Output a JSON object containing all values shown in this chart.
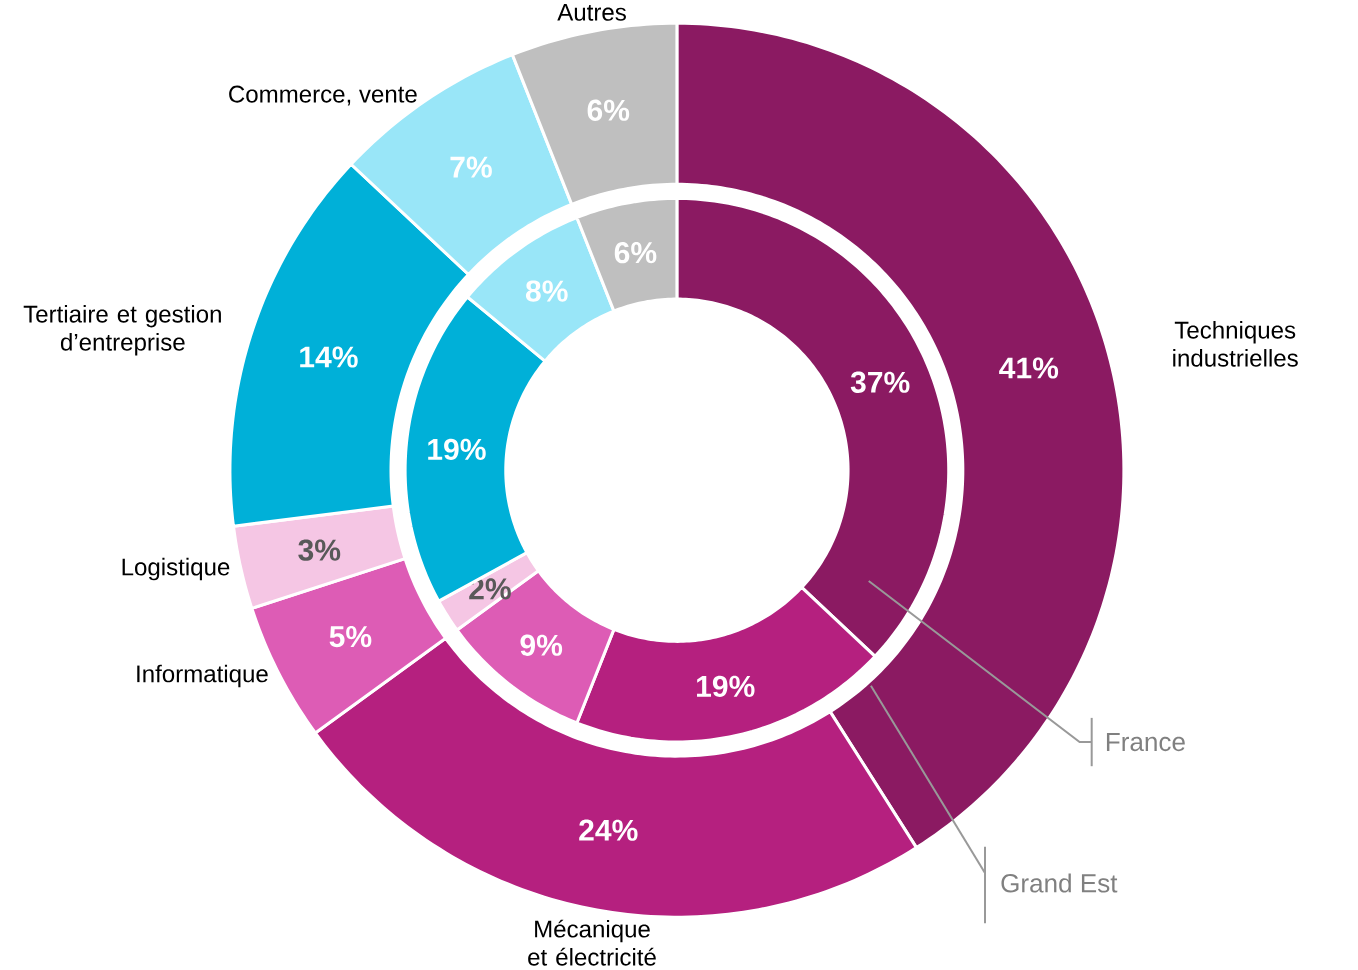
{
  "chart_data": {
    "type": "donut",
    "categories": [
      "Techniques industrielles",
      "Mécanique et électricité",
      "Informatique",
      "Logistique",
      "Tertiaire et gestion d’entreprise",
      "Commerce, vente",
      "Autres"
    ],
    "colors": [
      "#8b1a62",
      "#b5207f",
      "#dd5cb5",
      "#f5c6e4",
      "#00b0d8",
      "#99e6f8",
      "#bfbfbf"
    ],
    "series": [
      {
        "name": "Grand Est",
        "values": [
          41,
          24,
          5,
          3,
          14,
          7,
          6
        ],
        "value_labels": [
          "41%",
          "24%",
          "5%",
          "3%",
          "14%",
          "7%",
          "6%"
        ]
      },
      {
        "name": "France",
        "values": [
          37,
          19,
          9,
          2,
          19,
          8,
          6
        ],
        "value_labels": [
          "37%",
          "19%",
          "9%",
          "2%",
          "19%",
          "8%",
          "6%"
        ]
      }
    ],
    "legend": false
  }
}
